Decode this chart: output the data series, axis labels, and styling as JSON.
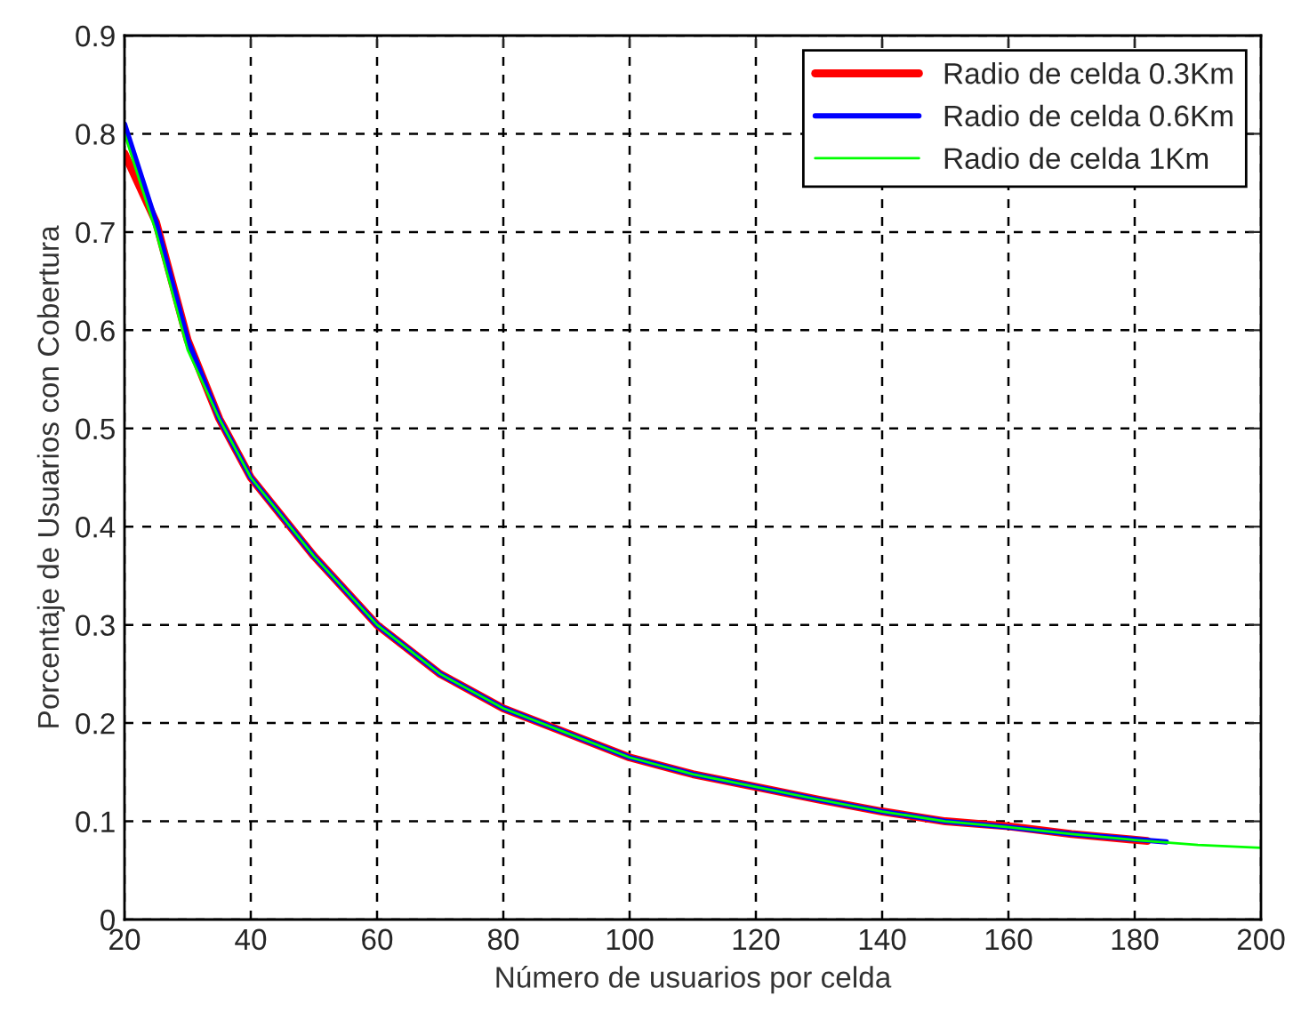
{
  "chart_data": {
    "type": "line",
    "xlabel": "Número de usuarios por celda",
    "ylabel": "Porcentaje de Usuarios con Cobertura",
    "xlim": [
      20,
      200
    ],
    "ylim": [
      0,
      0.9
    ],
    "xticks": [
      20,
      40,
      60,
      80,
      100,
      120,
      140,
      160,
      180,
      200
    ],
    "yticks": [
      0,
      0.1,
      0.2,
      0.3,
      0.4,
      0.5,
      0.6,
      0.7,
      0.8,
      0.9
    ],
    "grid": true,
    "legend": "top right",
    "line_style": "solid",
    "marker": "none",
    "series": [
      {
        "name": "Radio de celda 0.3Km",
        "color": "#ff0000",
        "x": [
          20,
          25,
          30,
          35,
          40,
          50,
          60,
          70,
          80,
          90,
          100,
          110,
          120,
          130,
          140,
          150,
          160,
          170,
          182
        ],
        "values": [
          0.78,
          0.71,
          0.59,
          0.51,
          0.45,
          0.37,
          0.3,
          0.25,
          0.215,
          0.19,
          0.165,
          0.148,
          0.135,
          0.122,
          0.11,
          0.1,
          0.095,
          0.087,
          0.08
        ]
      },
      {
        "name": "Radio de celda 0.6Km",
        "color": "#0000ff",
        "x": [
          20,
          25,
          30,
          35,
          40,
          50,
          60,
          70,
          80,
          90,
          100,
          110,
          120,
          130,
          140,
          150,
          160,
          170,
          185
        ],
        "values": [
          0.81,
          0.71,
          0.59,
          0.51,
          0.45,
          0.37,
          0.3,
          0.25,
          0.215,
          0.19,
          0.165,
          0.148,
          0.135,
          0.122,
          0.11,
          0.1,
          0.094,
          0.087,
          0.079
        ]
      },
      {
        "name": "Radio de celda 1Km",
        "color": "#00ff00",
        "x": [
          20,
          25,
          30,
          35,
          40,
          50,
          60,
          70,
          80,
          90,
          100,
          110,
          120,
          130,
          140,
          150,
          160,
          170,
          180,
          190,
          200
        ],
        "values": [
          0.8,
          0.7,
          0.58,
          0.51,
          0.45,
          0.37,
          0.3,
          0.25,
          0.215,
          0.19,
          0.165,
          0.148,
          0.135,
          0.122,
          0.11,
          0.1,
          0.094,
          0.087,
          0.081,
          0.076,
          0.073
        ]
      }
    ]
  }
}
